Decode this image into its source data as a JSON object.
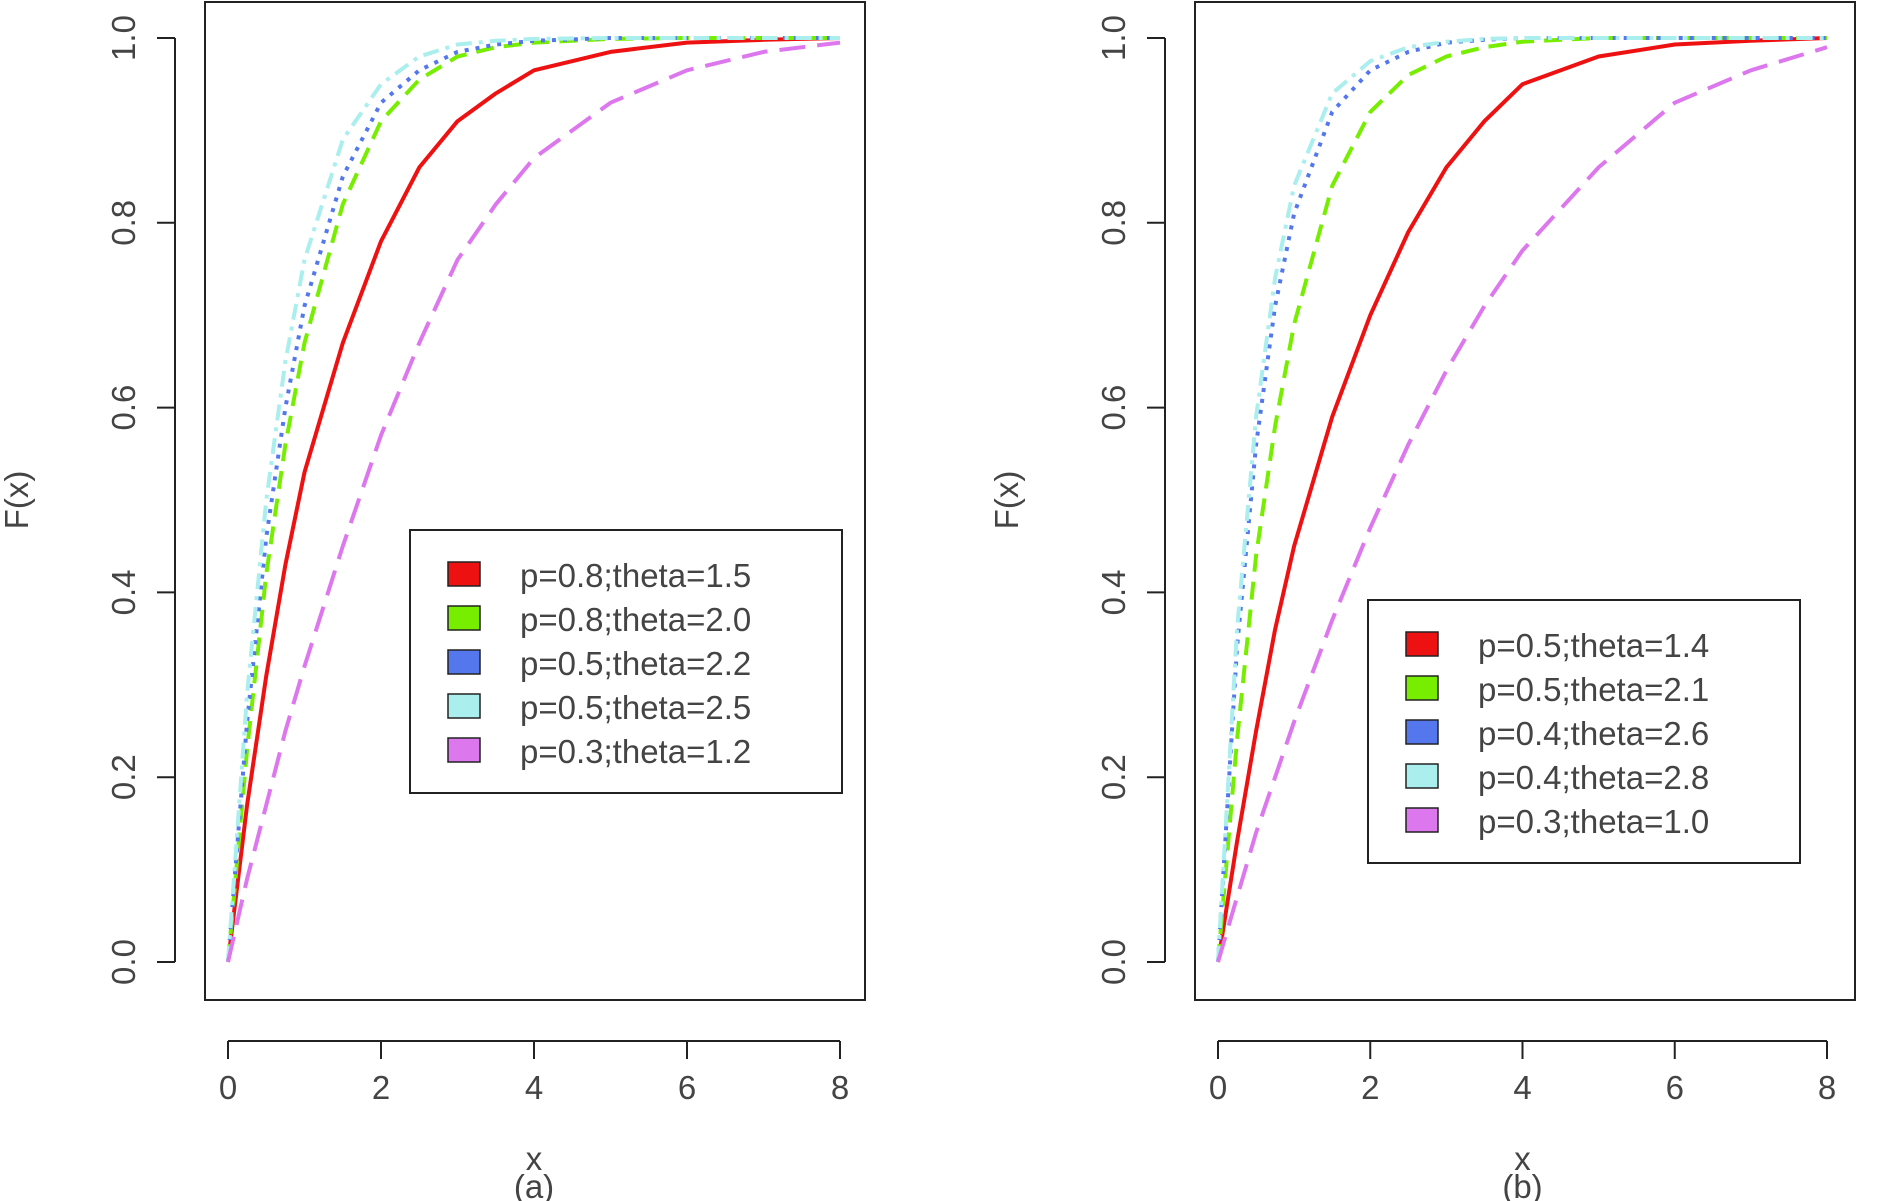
{
  "chart_data": [
    {
      "type": "line",
      "title": "",
      "caption": "(a)",
      "xlabel": "x",
      "ylabel": "F(x)",
      "xlim": [
        0,
        8
      ],
      "ylim": [
        0,
        1
      ],
      "x_ticks": [
        "0",
        "2",
        "4",
        "6",
        "8"
      ],
      "y_ticks": [
        "0.0",
        "0.2",
        "0.4",
        "0.6",
        "0.8",
        "1.0"
      ],
      "legend_position": "right-middle",
      "x": [
        0,
        0.25,
        0.5,
        0.75,
        1,
        1.5,
        2,
        2.5,
        3,
        3.5,
        4,
        5,
        6,
        7,
        8
      ],
      "series": [
        {
          "name": "p=0.8;theta=1.5",
          "color": "#ee1111",
          "dash": "solid",
          "values": [
            0,
            0.17,
            0.31,
            0.43,
            0.53,
            0.67,
            0.78,
            0.86,
            0.91,
            0.94,
            0.965,
            0.985,
            0.995,
            0.998,
            1.0
          ]
        },
        {
          "name": "p=0.8;theta=2.0",
          "color": "#77ee00",
          "dash": "dashed",
          "values": [
            0,
            0.23,
            0.42,
            0.56,
            0.67,
            0.82,
            0.91,
            0.955,
            0.98,
            0.99,
            0.995,
            0.999,
            1.0,
            1.0,
            1.0
          ]
        },
        {
          "name": "p=0.5;theta=2.2",
          "color": "#5577ee",
          "dash": "dotted",
          "values": [
            0,
            0.26,
            0.46,
            0.6,
            0.71,
            0.85,
            0.93,
            0.965,
            0.985,
            0.993,
            0.997,
            1.0,
            1.0,
            1.0,
            1.0
          ]
        },
        {
          "name": "p=0.5;theta=2.5",
          "color": "#aaeeee",
          "dash": "dashdot",
          "values": [
            0,
            0.29,
            0.5,
            0.65,
            0.76,
            0.89,
            0.95,
            0.98,
            0.993,
            0.997,
            0.999,
            1.0,
            1.0,
            1.0,
            1.0
          ]
        },
        {
          "name": "p=0.3;theta=1.2",
          "color": "#dd77ee",
          "dash": "longdash",
          "values": [
            0,
            0.09,
            0.17,
            0.25,
            0.32,
            0.45,
            0.57,
            0.67,
            0.76,
            0.82,
            0.87,
            0.93,
            0.965,
            0.985,
            0.995
          ]
        }
      ]
    },
    {
      "type": "line",
      "title": "",
      "caption": "(b)",
      "xlabel": "x",
      "ylabel": "F(x)",
      "xlim": [
        0,
        8
      ],
      "ylim": [
        0,
        1
      ],
      "x_ticks": [
        "0",
        "2",
        "4",
        "6",
        "8"
      ],
      "y_ticks": [
        "0.0",
        "0.2",
        "0.4",
        "0.6",
        "0.8",
        "1.0"
      ],
      "legend_position": "right-middle",
      "x": [
        0,
        0.25,
        0.5,
        0.75,
        1,
        1.5,
        2,
        2.5,
        3,
        3.5,
        4,
        5,
        6,
        7,
        8
      ],
      "series": [
        {
          "name": "p=0.5;theta=1.4",
          "color": "#ee1111",
          "dash": "solid",
          "values": [
            0,
            0.13,
            0.25,
            0.36,
            0.45,
            0.59,
            0.7,
            0.79,
            0.86,
            0.91,
            0.95,
            0.98,
            0.993,
            0.997,
            1.0
          ]
        },
        {
          "name": "p=0.5;theta=2.1",
          "color": "#77ee00",
          "dash": "dashed",
          "values": [
            0,
            0.24,
            0.44,
            0.58,
            0.69,
            0.84,
            0.92,
            0.96,
            0.98,
            0.99,
            0.996,
            1.0,
            1.0,
            1.0,
            1.0
          ]
        },
        {
          "name": "p=0.4;theta=2.6",
          "color": "#5577ee",
          "dash": "dotted",
          "values": [
            0,
            0.34,
            0.56,
            0.71,
            0.81,
            0.92,
            0.965,
            0.985,
            0.995,
            0.998,
            1.0,
            1.0,
            1.0,
            1.0,
            1.0
          ]
        },
        {
          "name": "p=0.4;theta=2.8",
          "color": "#aaeeee",
          "dash": "dashdot",
          "values": [
            0,
            0.36,
            0.59,
            0.74,
            0.84,
            0.94,
            0.975,
            0.99,
            0.996,
            0.999,
            1.0,
            1.0,
            1.0,
            1.0,
            1.0
          ]
        },
        {
          "name": "p=0.3;theta=1.0",
          "color": "#dd77ee",
          "dash": "longdash",
          "values": [
            0,
            0.07,
            0.14,
            0.2,
            0.26,
            0.37,
            0.47,
            0.56,
            0.64,
            0.71,
            0.77,
            0.86,
            0.93,
            0.965,
            0.99
          ]
        }
      ]
    }
  ]
}
